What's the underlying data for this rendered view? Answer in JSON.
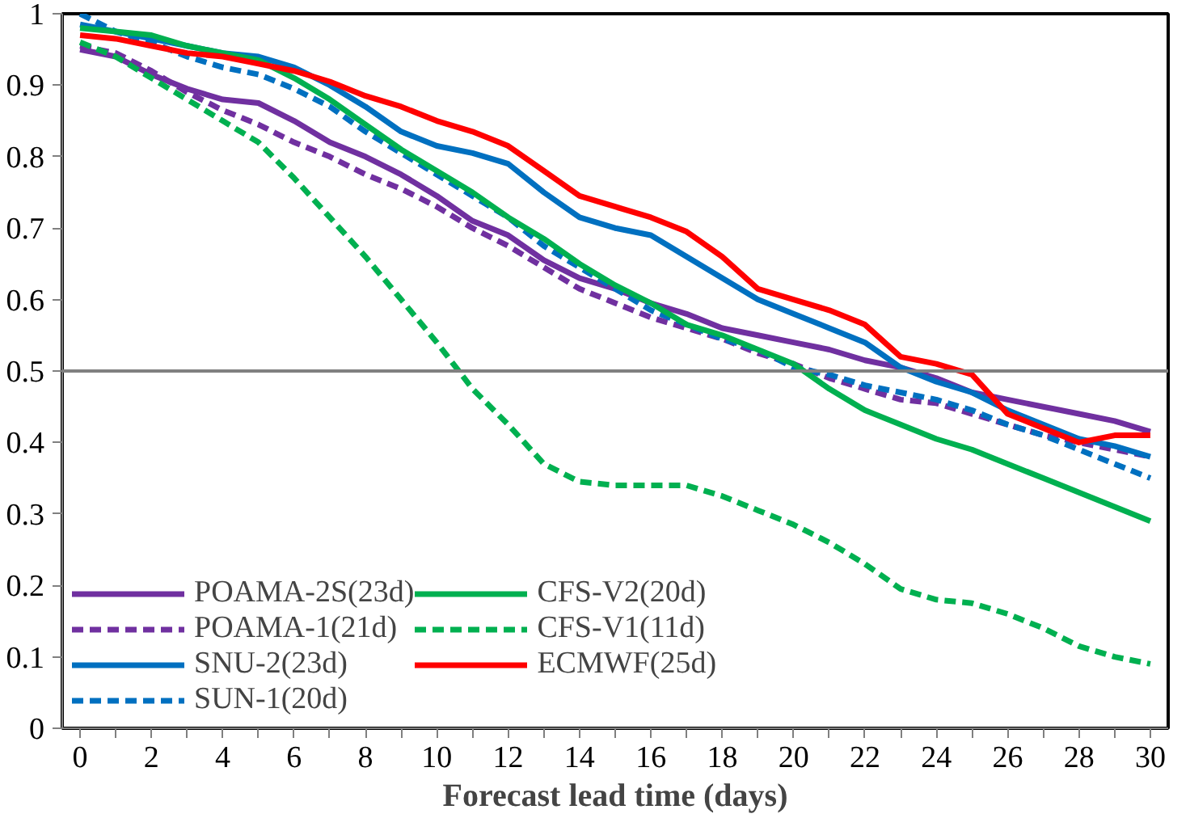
{
  "chart_data": {
    "type": "line",
    "xlabel": "Forecast lead time (days)",
    "x": [
      0,
      1,
      2,
      3,
      4,
      5,
      6,
      7,
      8,
      9,
      10,
      11,
      12,
      13,
      14,
      15,
      16,
      17,
      18,
      19,
      20,
      21,
      22,
      23,
      24,
      25,
      26,
      27,
      28,
      29,
      30
    ],
    "series": [
      {
        "name": "POAMA-2S(23d)",
        "color": "#7030a0",
        "line_style": "solid",
        "values": [
          0.95,
          0.94,
          0.915,
          0.895,
          0.88,
          0.875,
          0.85,
          0.82,
          0.8,
          0.775,
          0.745,
          0.71,
          0.69,
          0.655,
          0.63,
          0.615,
          0.595,
          0.58,
          0.56,
          0.55,
          0.54,
          0.53,
          0.515,
          0.505,
          0.49,
          0.47,
          0.46,
          0.45,
          0.44,
          0.43,
          0.415
        ]
      },
      {
        "name": "POAMA-1(21d)",
        "color": "#7030a0",
        "line_style": "dashed",
        "values": [
          0.955,
          0.945,
          0.92,
          0.89,
          0.865,
          0.845,
          0.82,
          0.8,
          0.775,
          0.755,
          0.73,
          0.7,
          0.675,
          0.645,
          0.615,
          0.595,
          0.575,
          0.56,
          0.545,
          0.525,
          0.51,
          0.49,
          0.475,
          0.46,
          0.455,
          0.44,
          0.425,
          0.41,
          0.4,
          0.39,
          0.38
        ]
      },
      {
        "name": "SNU-2(23d)",
        "color": "#0070c0",
        "line_style": "solid",
        "values": [
          0.985,
          0.975,
          0.965,
          0.955,
          0.945,
          0.94,
          0.925,
          0.9,
          0.87,
          0.835,
          0.815,
          0.805,
          0.79,
          0.75,
          0.715,
          0.7,
          0.69,
          0.66,
          0.63,
          0.6,
          0.58,
          0.56,
          0.54,
          0.505,
          0.485,
          0.47,
          0.445,
          0.425,
          0.405,
          0.395,
          0.38
        ]
      },
      {
        "name": "SUN-1(20d)",
        "color": "#0070c0",
        "line_style": "dashed",
        "values": [
          1.0,
          0.975,
          0.96,
          0.94,
          0.925,
          0.915,
          0.895,
          0.87,
          0.835,
          0.805,
          0.775,
          0.745,
          0.715,
          0.675,
          0.645,
          0.615,
          0.585,
          0.565,
          0.545,
          0.53,
          0.505,
          0.495,
          0.48,
          0.47,
          0.46,
          0.445,
          0.425,
          0.41,
          0.39,
          0.37,
          0.35
        ]
      },
      {
        "name": "CFS-V2(20d)",
        "color": "#00b050",
        "line_style": "solid",
        "values": [
          0.98,
          0.975,
          0.97,
          0.955,
          0.945,
          0.935,
          0.91,
          0.88,
          0.845,
          0.81,
          0.78,
          0.75,
          0.715,
          0.685,
          0.65,
          0.62,
          0.595,
          0.565,
          0.55,
          0.53,
          0.51,
          0.475,
          0.445,
          0.425,
          0.405,
          0.39,
          0.37,
          0.35,
          0.33,
          0.31,
          0.29
        ]
      },
      {
        "name": "CFS-V1(11d)",
        "color": "#00b050",
        "line_style": "dashed",
        "values": [
          0.96,
          0.94,
          0.91,
          0.88,
          0.85,
          0.82,
          0.77,
          0.715,
          0.66,
          0.6,
          0.54,
          0.475,
          0.425,
          0.37,
          0.345,
          0.34,
          0.34,
          0.34,
          0.325,
          0.305,
          0.285,
          0.26,
          0.23,
          0.195,
          0.18,
          0.175,
          0.16,
          0.14,
          0.115,
          0.1,
          0.09
        ]
      },
      {
        "name": "ECMWF(25d)",
        "color": "#ff0000",
        "line_style": "solid",
        "values": [
          0.97,
          0.965,
          0.955,
          0.945,
          0.94,
          0.93,
          0.92,
          0.905,
          0.885,
          0.87,
          0.85,
          0.835,
          0.815,
          0.78,
          0.745,
          0.73,
          0.715,
          0.695,
          0.66,
          0.615,
          0.6,
          0.585,
          0.565,
          0.52,
          0.51,
          0.495,
          0.44,
          0.42,
          0.4,
          0.41,
          0.41
        ]
      }
    ],
    "xlim": [
      -0.5,
      30.5
    ],
    "xticks": [
      0,
      {
        "value": 1,
        "label": null
      },
      2,
      {
        "value": 3,
        "label": null
      },
      4,
      {
        "value": 5,
        "label": null
      },
      6,
      {
        "value": 7,
        "label": null
      },
      8,
      {
        "value": 9,
        "label": null
      },
      10,
      {
        "value": 11,
        "label": null
      },
      12,
      {
        "value": 13,
        "label": null
      },
      14,
      {
        "value": 15,
        "label": null
      },
      16,
      {
        "value": 17,
        "label": null
      },
      18,
      {
        "value": 19,
        "label": null
      },
      20,
      {
        "value": 21,
        "label": null
      },
      22,
      {
        "value": 23,
        "label": null
      },
      24,
      {
        "value": 25,
        "label": null
      },
      26,
      {
        "value": 27,
        "label": null
      },
      28,
      {
        "value": 29,
        "label": null
      },
      30
    ],
    "ylim": [
      0,
      1
    ],
    "yticks": [
      0,
      0.1,
      0.2,
      0.3,
      0.4,
      0.5,
      0.6,
      0.7,
      0.8,
      0.9,
      1
    ],
    "ref_lines": [
      {
        "axis": "y",
        "value": 0.5,
        "label": null,
        "color": "#808080"
      }
    ],
    "grid": false,
    "legend": "bottom left",
    "marker": "none"
  }
}
